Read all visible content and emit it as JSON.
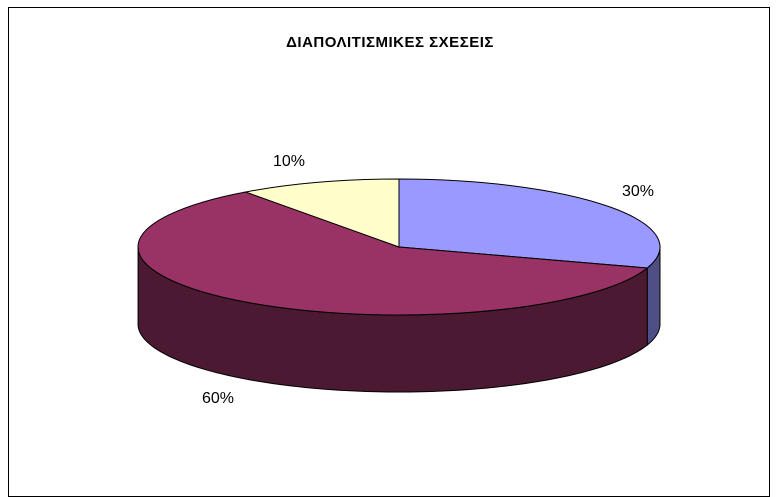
{
  "chart_data": {
    "type": "pie",
    "title": "ΔΙΑΠΟΛΙΤΙΣΜΙΚΕΣ ΣΧΕΣΕΙΣ",
    "values": [
      30,
      60,
      10
    ],
    "data_labels": [
      "30%",
      "60%",
      "10%"
    ],
    "colors": [
      "#9999ff",
      "#993366",
      "#ffffcc"
    ],
    "side_colors": [
      "#4f4f85",
      "#4b1931",
      "#8a8a6e"
    ],
    "style": "3d",
    "start_angle_deg": 90,
    "legend": "none"
  }
}
